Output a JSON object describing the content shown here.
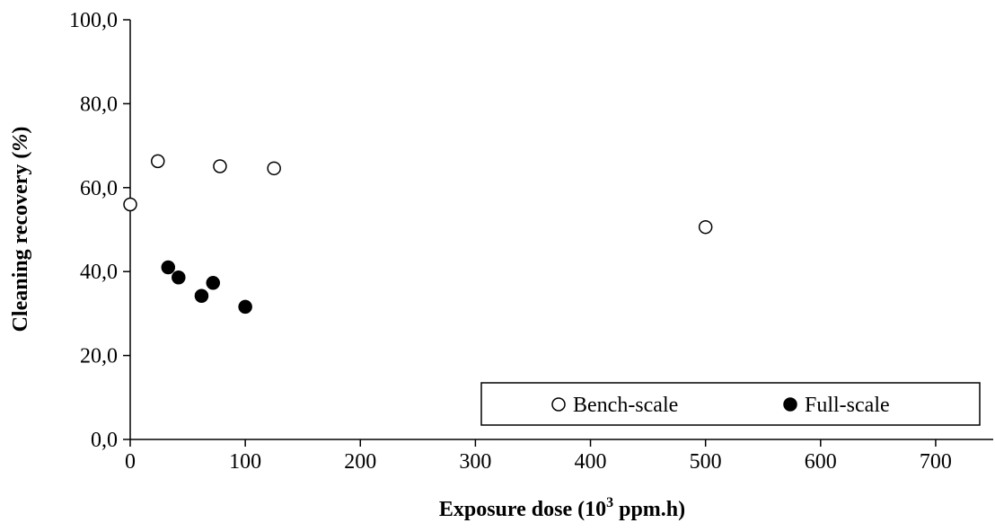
{
  "chart_data": {
    "type": "scatter",
    "xlabel_main": "Exposure dose (10",
    "xlabel_sup": "3",
    "xlabel_tail": " ppm.h)",
    "ylabel_main": "Cleaning recovery (",
    "ylabel_pct": "%",
    "ylabel_tail": ")",
    "xlim": [
      0,
      750
    ],
    "ylim": [
      0,
      100
    ],
    "x_ticks": [
      0,
      100,
      200,
      300,
      400,
      500,
      600,
      700
    ],
    "x_tick_labels": [
      "0",
      "100",
      "200",
      "300",
      "400",
      "500",
      "600",
      "700"
    ],
    "y_ticks": [
      0,
      20,
      40,
      60,
      80,
      100
    ],
    "y_tick_labels": [
      "0,0",
      "20,0",
      "40,0",
      "60,0",
      "80,0",
      "100,0"
    ],
    "grid": false,
    "legend": {
      "placement": "bottom-right",
      "boxed": true
    },
    "series": [
      {
        "name": "Bench-scale",
        "marker": "open-circle",
        "points": [
          {
            "x": 0,
            "y": 56.0
          },
          {
            "x": 24,
            "y": 66.3
          },
          {
            "x": 78,
            "y": 65.1
          },
          {
            "x": 125,
            "y": 64.6
          },
          {
            "x": 500,
            "y": 50.6
          }
        ]
      },
      {
        "name": "Full-scale",
        "marker": "filled-circle",
        "points": [
          {
            "x": 33,
            "y": 41.0
          },
          {
            "x": 42,
            "y": 38.6
          },
          {
            "x": 62,
            "y": 34.2
          },
          {
            "x": 72,
            "y": 37.3
          },
          {
            "x": 100,
            "y": 31.6
          }
        ]
      }
    ]
  }
}
